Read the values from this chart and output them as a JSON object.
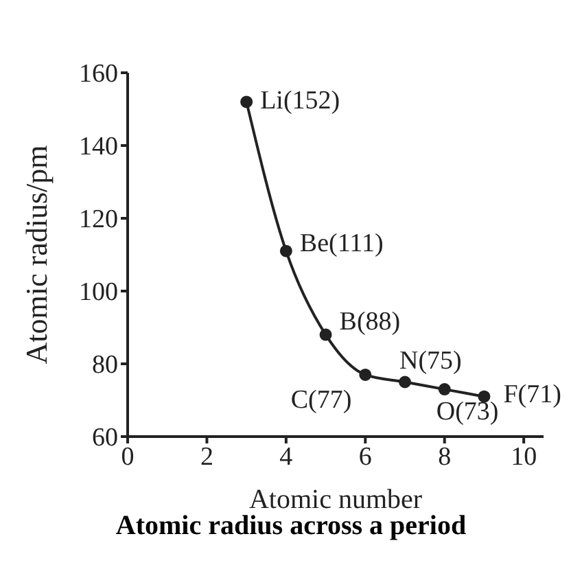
{
  "chart_data": {
    "type": "line",
    "title": "Atomic radius across a period",
    "xlabel": "Atomic number",
    "ylabel": "Atomic radius/pm",
    "x": [
      3,
      4,
      5,
      6,
      7,
      8,
      9
    ],
    "series": [
      {
        "color": "#222222",
        "values": [
          152,
          111,
          88,
          77,
          75,
          73,
          71
        ]
      }
    ],
    "xlim": [
      0,
      10.5
    ],
    "xticks": [
      0,
      2,
      4,
      6,
      8,
      10
    ],
    "ylim": [
      60,
      160
    ],
    "yticks": [
      60,
      80,
      100,
      120,
      140,
      160
    ],
    "marker": "circle",
    "line_style": "solid",
    "annotations": [
      {
        "text": "Li(152)",
        "x": 3,
        "y": 152
      },
      {
        "text": "Be(111)",
        "x": 4,
        "y": 111
      },
      {
        "text": "B(88)",
        "x": 5,
        "y": 88
      },
      {
        "text": "C(77)",
        "x": 6,
        "y": 77
      },
      {
        "text": "N(75)",
        "x": 7,
        "y": 75
      },
      {
        "text": "O(73)",
        "x": 8,
        "y": 73
      },
      {
        "text": "F(71)",
        "x": 9,
        "y": 71
      }
    ]
  }
}
